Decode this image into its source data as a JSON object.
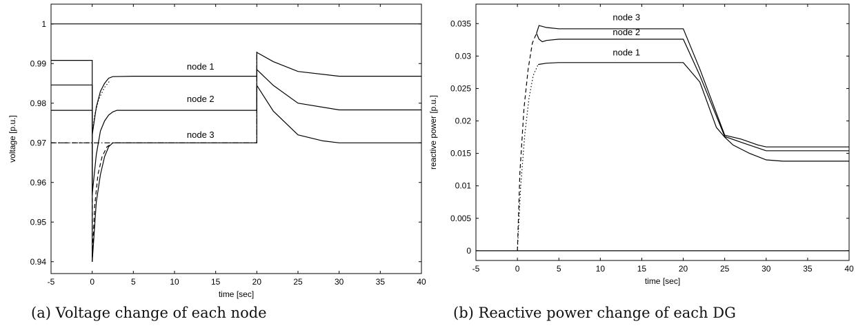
{
  "captions": [
    "(a) Voltage change of each node",
    "(b) Reactive power change of each DG"
  ],
  "chart_data": [
    {
      "type": "line",
      "title": "",
      "xlabel": "time [sec]",
      "ylabel": "voltage [p.u.]",
      "xlim": [
        -5,
        40
      ],
      "ylim": [
        0.937,
        1.005
      ],
      "xticks": [
        -5,
        0,
        5,
        10,
        15,
        20,
        25,
        30,
        35,
        40
      ],
      "xtick_labels": [
        "-5",
        "0",
        "5",
        "10",
        "15",
        "20",
        "25",
        "30",
        "35",
        "40"
      ],
      "yticks": [
        0.94,
        0.95,
        0.96,
        0.97,
        0.98,
        0.99,
        1
      ],
      "ytick_labels": [
        "0.94",
        "0.95",
        "0.96",
        "0.97",
        "0.98",
        "0.99",
        "1"
      ],
      "grid": false,
      "series": [
        {
          "x": [
            -5,
            40
          ],
          "y": [
            1.0,
            1.0
          ]
        },
        {
          "x": [
            -5,
            0,
            0,
            0.5,
            1,
            1.5,
            2,
            2.5,
            5,
            20,
            20,
            22,
            25,
            30,
            40
          ],
          "y": [
            0.9908,
            0.9908,
            0.972,
            0.979,
            0.983,
            0.985,
            0.9863,
            0.9867,
            0.9868,
            0.9868,
            0.9928,
            0.9905,
            0.988,
            0.9868,
            0.9868
          ],
          "style": "solid"
        },
        {
          "x": [
            -5,
            0,
            0,
            0.5,
            1,
            1.5,
            2,
            2.5,
            3,
            20,
            20,
            22,
            25,
            30,
            40
          ],
          "y": [
            0.9846,
            0.9846,
            0.957,
            0.967,
            0.973,
            0.9755,
            0.977,
            0.9778,
            0.9782,
            0.9782,
            0.9885,
            0.9845,
            0.98,
            0.9783,
            0.9783
          ],
          "style": "solid"
        },
        {
          "x": [
            -5,
            0,
            0,
            0.5,
            1,
            1.5,
            2,
            2.5,
            20,
            20,
            22,
            25,
            28,
            30,
            40
          ],
          "y": [
            0.9782,
            0.9782,
            0.94,
            0.955,
            0.962,
            0.9665,
            0.969,
            0.97,
            0.97,
            0.9845,
            0.978,
            0.972,
            0.9705,
            0.97,
            0.97
          ],
          "style": "solid"
        },
        {
          "x": [
            -5,
            0,
            0,
            0.3,
            0.7,
            1.2,
            1.8,
            2.5
          ],
          "y": [
            0.97,
            0.97,
            0.94,
            0.954,
            0.962,
            0.9665,
            0.969,
            0.97
          ],
          "style": "dashed"
        },
        {
          "x": [
            0,
            0.3,
            0.8,
            1.5,
            2.2
          ],
          "y": [
            0.972,
            0.977,
            0.981,
            0.984,
            0.9858
          ],
          "style": "dotted"
        },
        {
          "x": [
            -5,
            20,
            20
          ],
          "y": [
            0.97,
            0.97,
            0.993
          ],
          "style": "dashdot"
        }
      ],
      "annotations": [
        {
          "text": "node 1",
          "x": 11.5,
          "y": 0.9885
        },
        {
          "text": "node 2",
          "x": 11.5,
          "y": 0.9803
        },
        {
          "text": "node 3",
          "x": 11.5,
          "y": 0.9713
        }
      ]
    },
    {
      "type": "line",
      "title": "",
      "xlabel": "time [sec]",
      "ylabel": "reactive power [p.u.]",
      "xlim": [
        -5,
        40
      ],
      "ylim": [
        -0.0015,
        0.038
      ],
      "xticks": [
        -5,
        0,
        5,
        10,
        15,
        20,
        25,
        30,
        35,
        40
      ],
      "xtick_labels": [
        "-5",
        "0",
        "5",
        "10",
        "15",
        "20",
        "25",
        "30",
        "35",
        "40"
      ],
      "yticks": [
        0,
        0.005,
        0.01,
        0.015,
        0.02,
        0.025,
        0.03,
        0.035
      ],
      "ytick_labels": [
        "0",
        "0.005",
        "0.01",
        "0.015",
        "0.02",
        "0.025",
        "0.03",
        "0.035"
      ],
      "grid": false,
      "series": [
        {
          "x": [
            -5,
            40
          ],
          "y": [
            0,
            0
          ]
        },
        {
          "x": [
            2.3,
            2.6,
            3.5,
            5,
            20,
            22,
            25,
            27,
            29,
            30,
            40
          ],
          "y": [
            0.0335,
            0.0347,
            0.0344,
            0.0342,
            0.0342,
            0.028,
            0.0178,
            0.0172,
            0.0163,
            0.016,
            0.016
          ],
          "style": "solid"
        },
        {
          "x": [
            2.3,
            2.6,
            3,
            3.5,
            5,
            20,
            22,
            25,
            27,
            30,
            40
          ],
          "y": [
            0.0335,
            0.0326,
            0.0322,
            0.0324,
            0.0326,
            0.0326,
            0.027,
            0.0176,
            0.0167,
            0.0154,
            0.0154
          ],
          "style": "solid"
        },
        {
          "x": [
            2.5,
            3.5,
            5,
            20,
            22,
            24,
            25,
            26,
            28,
            30,
            32,
            40
          ],
          "y": [
            0.0287,
            0.0289,
            0.029,
            0.029,
            0.026,
            0.019,
            0.0175,
            0.0163,
            0.015,
            0.014,
            0.0138,
            0.0138
          ],
          "style": "solid"
        },
        {
          "x": [
            0,
            0.3,
            0.8,
            1.3,
            1.8,
            2.3
          ],
          "y": [
            0,
            0.012,
            0.022,
            0.028,
            0.032,
            0.0335
          ],
          "style": "dashed"
        },
        {
          "x": [
            0,
            0.4,
            0.9,
            1.4,
            1.9,
            2.5
          ],
          "y": [
            0,
            0.01,
            0.018,
            0.0235,
            0.027,
            0.0287
          ],
          "style": "dotted"
        }
      ],
      "annotations": [
        {
          "text": "node 3",
          "x": 11.5,
          "y": 0.0355
        },
        {
          "text": "node 2",
          "x": 11.5,
          "y": 0.0332
        },
        {
          "text": "node 1",
          "x": 11.5,
          "y": 0.0301
        }
      ]
    }
  ]
}
